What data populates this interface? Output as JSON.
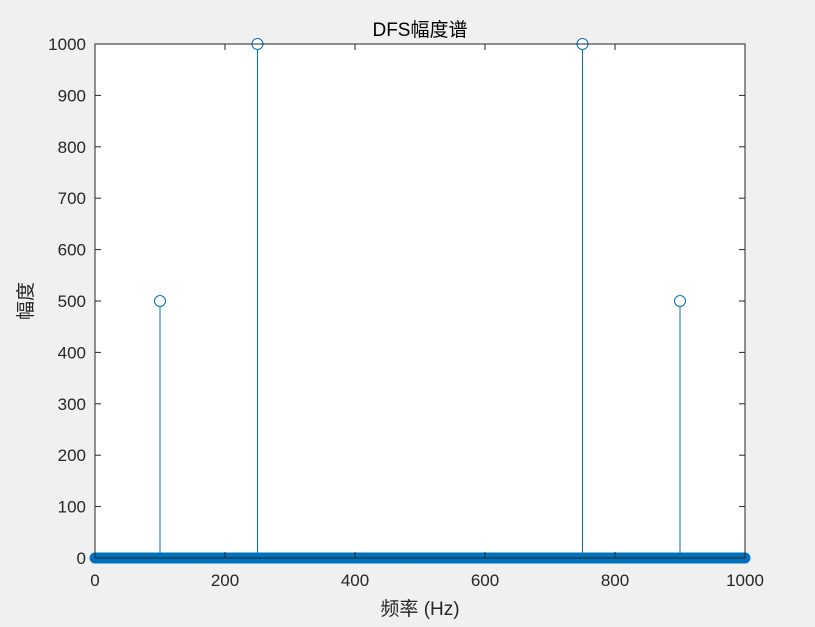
{
  "chart_data": {
    "type": "stem",
    "title": "DFS幅度谱",
    "xlabel": "频率 (Hz)",
    "ylabel": "幅度",
    "xlim": [
      0,
      1000
    ],
    "ylim": [
      0,
      1000
    ],
    "xticks": [
      0,
      200,
      400,
      600,
      800,
      1000
    ],
    "yticks": [
      0,
      100,
      200,
      300,
      400,
      500,
      600,
      700,
      800,
      900,
      1000
    ],
    "grid": false,
    "legend": "none",
    "baseline_samples": {
      "x_start": 0,
      "x_end": 1000,
      "x_step": 1,
      "value": 0
    },
    "series": [
      {
        "points": [
          {
            "x": 100,
            "y": 500
          },
          {
            "x": 250,
            "y": 1000
          },
          {
            "x": 750,
            "y": 1000
          },
          {
            "x": 900,
            "y": 500
          }
        ]
      }
    ],
    "colors": {
      "series": "#0072BD",
      "axes": "#262626",
      "plot_bg": "#ffffff",
      "figure_bg": "#f0f0f0"
    }
  }
}
